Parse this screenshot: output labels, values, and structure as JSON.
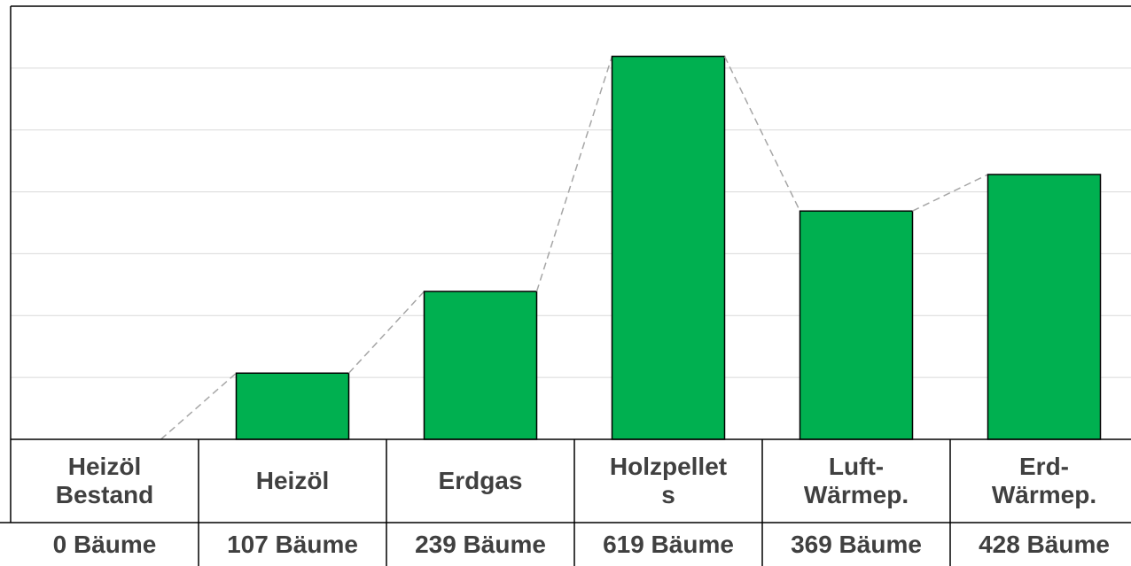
{
  "chart_data": {
    "type": "bar",
    "categories": [
      "Heizöl\nBestand",
      "Heizöl",
      "Erdgas",
      "Holzpellet\ns",
      "Luft-\nWärmep.",
      "Erd-\nWärmep."
    ],
    "values": [
      0,
      107,
      239,
      619,
      369,
      428
    ],
    "value_labels": [
      "0 Bäume",
      "107 Bäume",
      "239 Bäume",
      "619 Bäume",
      "369 Bäume",
      "428 Bäume"
    ],
    "color": "#00b050",
    "ylim": [
      0,
      700
    ],
    "yticks": [
      0,
      100,
      200,
      300,
      400,
      500,
      600,
      700
    ],
    "grid": true
  }
}
